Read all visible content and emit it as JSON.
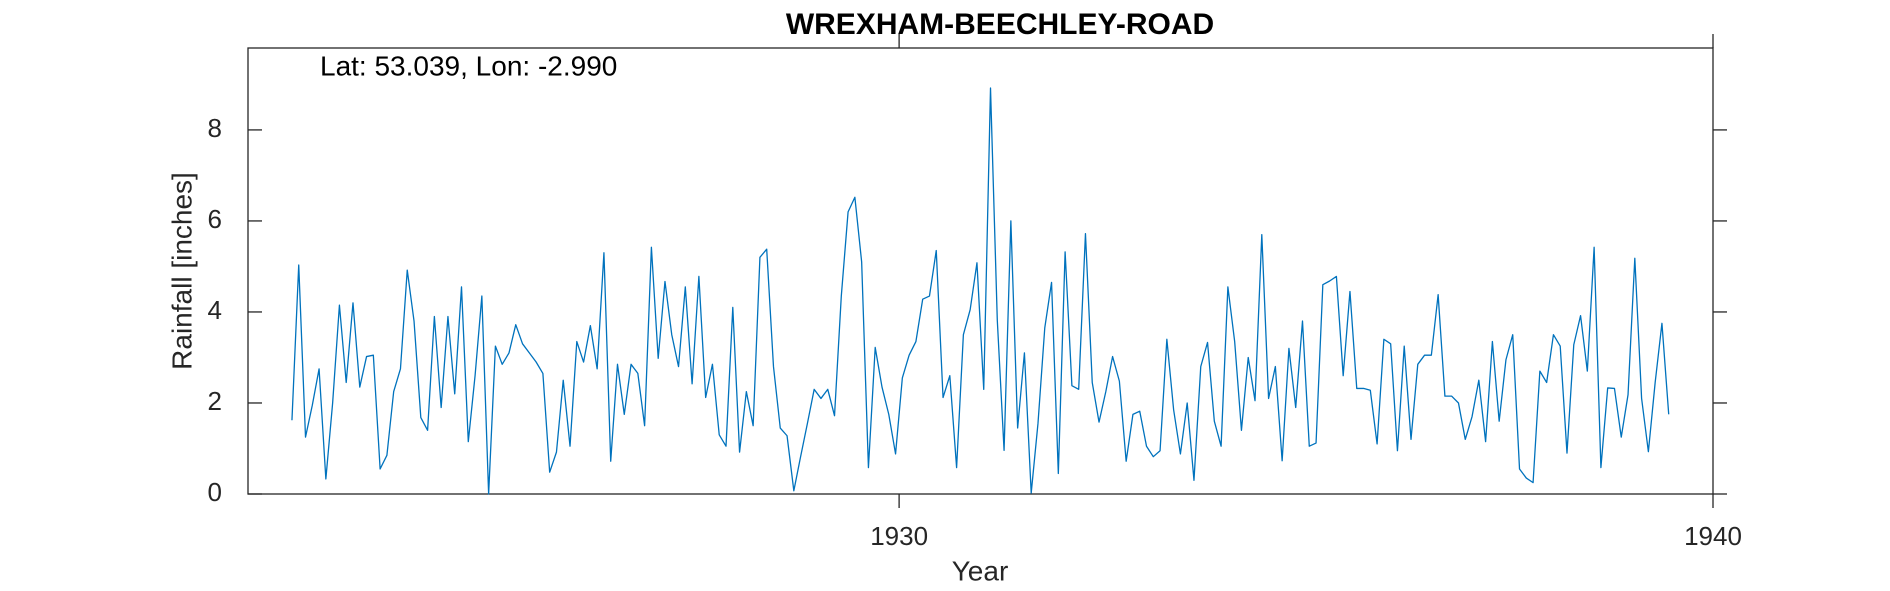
{
  "chart_data": {
    "type": "line",
    "title": "WREXHAM-BEECHLEY-ROAD",
    "annotation": "Lat: 53.039, Lon: -2.990",
    "xlabel": "Year",
    "ylabel": "Rainfall [inches]",
    "xlim": [
      1922,
      1940
    ],
    "ylim": [
      0,
      9.8
    ],
    "xticks": [
      1930,
      1940
    ],
    "yticks": [
      0,
      2,
      4,
      6,
      8
    ],
    "grid": false,
    "line_color": "#0072BD",
    "series": [
      {
        "x_start": 1922.54,
        "x_step": 0.08333,
        "values": [
          1.62,
          5.03,
          1.25,
          1.95,
          2.75,
          0.33,
          2.0,
          4.15,
          2.45,
          4.2,
          2.35,
          3.02,
          3.05,
          0.55,
          0.85,
          2.25,
          2.75,
          4.92,
          3.8,
          1.68,
          1.4,
          3.9,
          1.9,
          3.9,
          2.2,
          4.55,
          1.15,
          2.6,
          4.35,
          0.0,
          3.25,
          2.85,
          3.1,
          3.72,
          3.3,
          3.1,
          2.9,
          2.65,
          0.48,
          0.92,
          2.5,
          1.05,
          3.35,
          2.9,
          3.7,
          2.75,
          5.3,
          0.72,
          2.85,
          1.75,
          2.85,
          2.65,
          1.5,
          5.42,
          2.98,
          4.67,
          3.5,
          2.8,
          4.55,
          2.42,
          4.78,
          2.12,
          2.85,
          1.3,
          1.05,
          4.1,
          0.92,
          2.25,
          1.5,
          5.2,
          5.38,
          2.8,
          1.45,
          1.28,
          0.07,
          0.82,
          1.55,
          2.3,
          2.1,
          2.3,
          1.72,
          4.35,
          6.2,
          6.52,
          5.1,
          0.58,
          3.22,
          2.35,
          1.75,
          0.88,
          2.55,
          3.05,
          3.35,
          4.28,
          4.35,
          5.35,
          2.12,
          2.6,
          0.58,
          3.5,
          4.05,
          5.08,
          2.3,
          8.92,
          3.82,
          0.96,
          6.0,
          1.45,
          3.1,
          0.02,
          1.55,
          3.65,
          4.65,
          0.45,
          5.32,
          2.38,
          2.3,
          5.72,
          2.45,
          1.58,
          2.25,
          3.02,
          2.48,
          0.72,
          1.75,
          1.82,
          1.05,
          0.82,
          0.95,
          3.4,
          1.85,
          0.88,
          2.0,
          0.3,
          2.8,
          3.33,
          1.6,
          1.05,
          4.55,
          3.35,
          1.4,
          3.0,
          2.05,
          5.7,
          2.1,
          2.8,
          0.73,
          3.2,
          1.9,
          3.8,
          1.05,
          1.12,
          4.6,
          4.68,
          4.78,
          2.6,
          4.45,
          2.32,
          2.32,
          2.28,
          1.1,
          3.4,
          3.3,
          0.95,
          3.25,
          1.2,
          2.85,
          3.05,
          3.05,
          4.38,
          2.15,
          2.15,
          2.0,
          1.2,
          1.7,
          2.5,
          1.15,
          3.35,
          1.6,
          2.95,
          3.5,
          0.55,
          0.35,
          0.25,
          2.7,
          2.45,
          3.5,
          3.25,
          0.9,
          3.28,
          3.92,
          2.7,
          5.42,
          0.58,
          2.33,
          2.32,
          1.25,
          2.18,
          5.18,
          2.1,
          0.93,
          2.45,
          3.75,
          1.75
        ]
      }
    ]
  }
}
